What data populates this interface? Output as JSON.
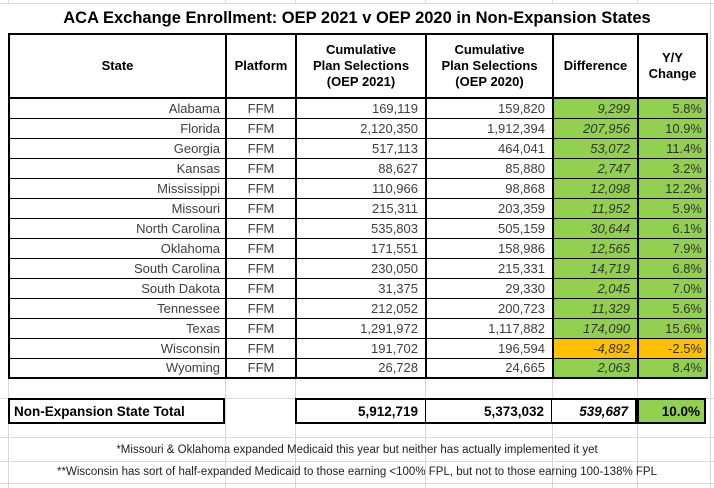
{
  "title": "ACA Exchange Enrollment: OEP 2021 v OEP 2020 in Non-Expansion States",
  "colors": {
    "positive": "#92D050",
    "negative": "#FFC000"
  },
  "table": {
    "columns": [
      "State",
      "Platform",
      "Cumulative\nPlan Selections\n(OEP 2021)",
      "Cumulative\nPlan Selections\n(OEP 2020)",
      "Difference",
      "Y/Y\nChange"
    ],
    "rows": [
      {
        "state": "Alabama",
        "platform": "FFM",
        "oep2021": "169,119",
        "oep2020": "159,820",
        "difference": "9,299",
        "yy_change": "5.8%",
        "negative": false
      },
      {
        "state": "Florida",
        "platform": "FFM",
        "oep2021": "2,120,350",
        "oep2020": "1,912,394",
        "difference": "207,956",
        "yy_change": "10.9%",
        "negative": false
      },
      {
        "state": "Georgia",
        "platform": "FFM",
        "oep2021": "517,113",
        "oep2020": "464,041",
        "difference": "53,072",
        "yy_change": "11.4%",
        "negative": false
      },
      {
        "state": "Kansas",
        "platform": "FFM",
        "oep2021": "88,627",
        "oep2020": "85,880",
        "difference": "2,747",
        "yy_change": "3.2%",
        "negative": false
      },
      {
        "state": "Mississippi",
        "platform": "FFM",
        "oep2021": "110,966",
        "oep2020": "98,868",
        "difference": "12,098",
        "yy_change": "12.2%",
        "negative": false
      },
      {
        "state": "Missouri",
        "platform": "FFM",
        "oep2021": "215,311",
        "oep2020": "203,359",
        "difference": "11,952",
        "yy_change": "5.9%",
        "negative": false
      },
      {
        "state": "North Carolina",
        "platform": "FFM",
        "oep2021": "535,803",
        "oep2020": "505,159",
        "difference": "30,644",
        "yy_change": "6.1%",
        "negative": false
      },
      {
        "state": "Oklahoma",
        "platform": "FFM",
        "oep2021": "171,551",
        "oep2020": "158,986",
        "difference": "12,565",
        "yy_change": "7.9%",
        "negative": false
      },
      {
        "state": "South Carolina",
        "platform": "FFM",
        "oep2021": "230,050",
        "oep2020": "215,331",
        "difference": "14,719",
        "yy_change": "6.8%",
        "negative": false
      },
      {
        "state": "South Dakota",
        "platform": "FFM",
        "oep2021": "31,375",
        "oep2020": "29,330",
        "difference": "2,045",
        "yy_change": "7.0%",
        "negative": false
      },
      {
        "state": "Tennessee",
        "platform": "FFM",
        "oep2021": "212,052",
        "oep2020": "200,723",
        "difference": "11,329",
        "yy_change": "5.6%",
        "negative": false
      },
      {
        "state": "Texas",
        "platform": "FFM",
        "oep2021": "1,291,972",
        "oep2020": "1,117,882",
        "difference": "174,090",
        "yy_change": "15.6%",
        "negative": false
      },
      {
        "state": "Wisconsin",
        "platform": "FFM",
        "oep2021": "191,702",
        "oep2020": "196,594",
        "difference": "-4,892",
        "yy_change": "-2.5%",
        "negative": true
      },
      {
        "state": "Wyoming",
        "platform": "FFM",
        "oep2021": "26,728",
        "oep2020": "24,665",
        "difference": "2,063",
        "yy_change": "8.4%",
        "negative": false
      }
    ],
    "total": {
      "label": "Non-Expansion State Total",
      "oep2021": "5,912,719",
      "oep2020": "5,373,032",
      "difference": "539,687",
      "yy_change": "10.0%"
    }
  },
  "footnotes": [
    "*Missouri & Oklahoma expanded Medicaid this year but neither has actually implemented it yet",
    "**Wisconsin has sort of half-expanded Medicaid to those earning <100% FPL, but not to those earning 100-138% FPL"
  ],
  "chart_data": {
    "type": "table",
    "title": "ACA Exchange Enrollment: OEP 2021 v OEP 2020 in Non-Expansion States",
    "columns": [
      "State",
      "Platform",
      "Cumulative Plan Selections (OEP 2021)",
      "Cumulative Plan Selections (OEP 2020)",
      "Difference",
      "Y/Y Change"
    ],
    "rows": [
      {
        "state": "Alabama",
        "platform": "FFM",
        "oep_2021": 169119,
        "oep_2020": 159820,
        "difference": 9299,
        "yy_change_pct": 5.8
      },
      {
        "state": "Florida",
        "platform": "FFM",
        "oep_2021": 2120350,
        "oep_2020": 1912394,
        "difference": 207956,
        "yy_change_pct": 10.9
      },
      {
        "state": "Georgia",
        "platform": "FFM",
        "oep_2021": 517113,
        "oep_2020": 464041,
        "difference": 53072,
        "yy_change_pct": 11.4
      },
      {
        "state": "Kansas",
        "platform": "FFM",
        "oep_2021": 88627,
        "oep_2020": 85880,
        "difference": 2747,
        "yy_change_pct": 3.2
      },
      {
        "state": "Mississippi",
        "platform": "FFM",
        "oep_2021": 110966,
        "oep_2020": 98868,
        "difference": 12098,
        "yy_change_pct": 12.2
      },
      {
        "state": "Missouri",
        "platform": "FFM",
        "oep_2021": 215311,
        "oep_2020": 203359,
        "difference": 11952,
        "yy_change_pct": 5.9
      },
      {
        "state": "North Carolina",
        "platform": "FFM",
        "oep_2021": 535803,
        "oep_2020": 505159,
        "difference": 30644,
        "yy_change_pct": 6.1
      },
      {
        "state": "Oklahoma",
        "platform": "FFM",
        "oep_2021": 171551,
        "oep_2020": 158986,
        "difference": 12565,
        "yy_change_pct": 7.9
      },
      {
        "state": "South Carolina",
        "platform": "FFM",
        "oep_2021": 230050,
        "oep_2020": 215331,
        "difference": 14719,
        "yy_change_pct": 6.8
      },
      {
        "state": "South Dakota",
        "platform": "FFM",
        "oep_2021": 31375,
        "oep_2020": 29330,
        "difference": 2045,
        "yy_change_pct": 7.0
      },
      {
        "state": "Tennessee",
        "platform": "FFM",
        "oep_2021": 212052,
        "oep_2020": 200723,
        "difference": 11329,
        "yy_change_pct": 5.6
      },
      {
        "state": "Texas",
        "platform": "FFM",
        "oep_2021": 1291972,
        "oep_2020": 1117882,
        "difference": 174090,
        "yy_change_pct": 15.6
      },
      {
        "state": "Wisconsin",
        "platform": "FFM",
        "oep_2021": 191702,
        "oep_2020": 196594,
        "difference": -4892,
        "yy_change_pct": -2.5
      },
      {
        "state": "Wyoming",
        "platform": "FFM",
        "oep_2021": 26728,
        "oep_2020": 24665,
        "difference": 2063,
        "yy_change_pct": 8.4
      }
    ],
    "total": {
      "label": "Non-Expansion State Total",
      "oep_2021": 5912719,
      "oep_2020": 5373032,
      "difference": 539687,
      "yy_change_pct": 10.0
    },
    "highlight": {
      "positive_color": "#92D050",
      "negative_color": "#FFC000",
      "negative_rows": [
        "Wisconsin"
      ]
    },
    "footnotes": [
      "*Missouri & Oklahoma expanded Medicaid this year but neither has actually implemented it yet",
      "**Wisconsin has sort of half-expanded Medicaid to those earning <100% FPL, but not to those earning 100-138% FPL"
    ]
  }
}
